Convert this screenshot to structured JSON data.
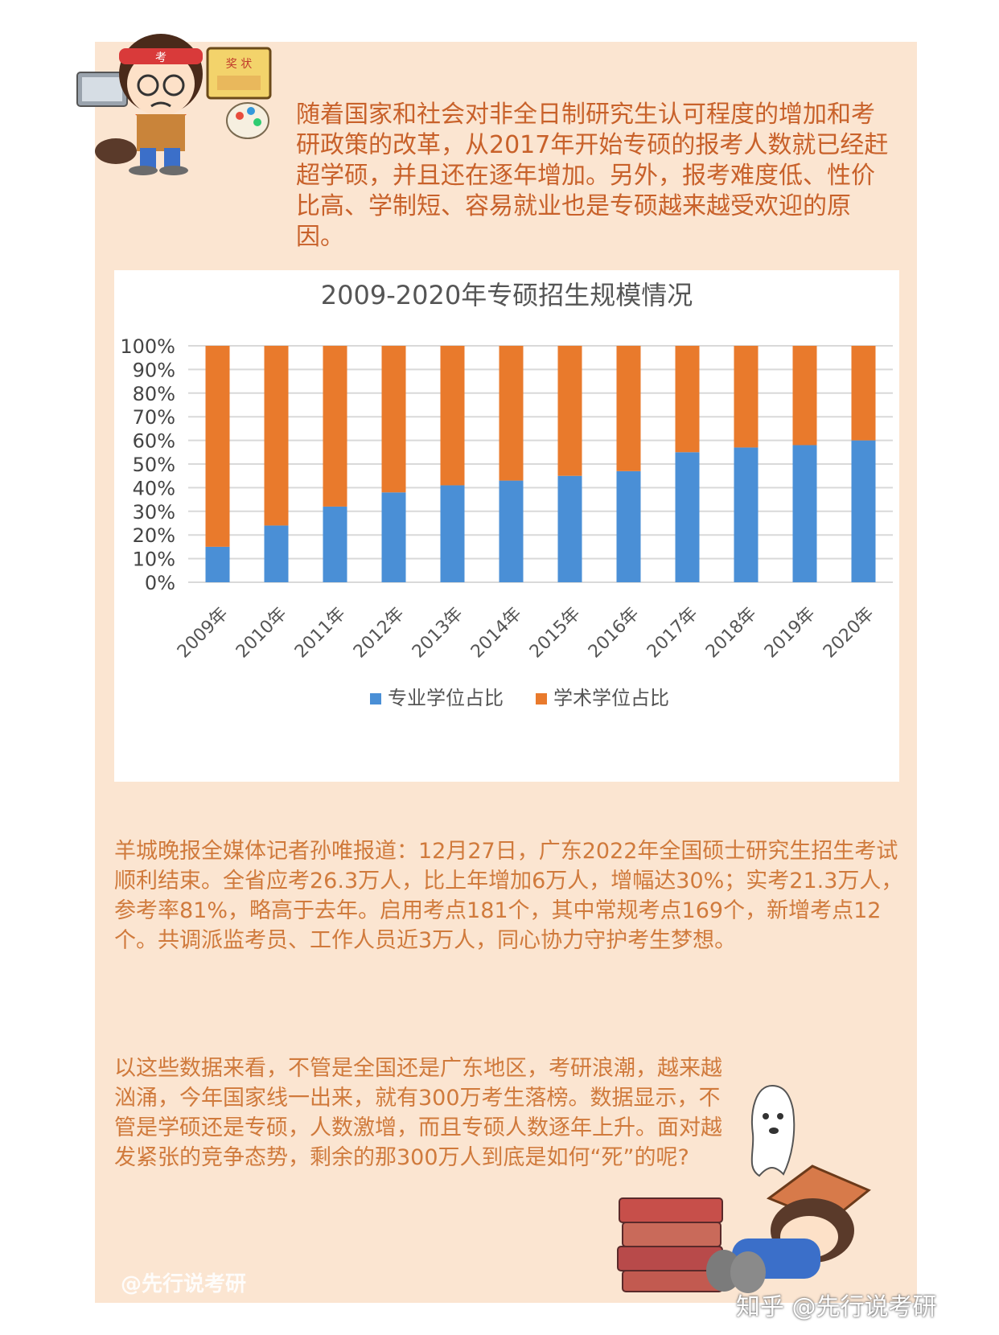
{
  "intro_text": "随着国家和社会对非全日制研究生认可程度的增加和考研政策的改革，从2017年开始专硕的报考人数就已经赶超学硕，并且还在逐年增加。另外，报考难度低、性价比高、学制短、容易就业也是专硕越来越受欢迎的原因。",
  "chart_data": {
    "type": "bar",
    "stacked": true,
    "title": "2009-2020年专硕招生规模情况",
    "xlabel": "",
    "ylabel": "",
    "ylim": [
      0,
      100
    ],
    "y_ticks": [
      "0%",
      "10%",
      "20%",
      "30%",
      "40%",
      "50%",
      "60%",
      "70%",
      "80%",
      "90%",
      "100%"
    ],
    "categories": [
      "2009年",
      "2010年",
      "2011年",
      "2012年",
      "2013年",
      "2014年",
      "2015年",
      "2016年",
      "2017年",
      "2018年",
      "2019年",
      "2020年"
    ],
    "series": [
      {
        "name": "专业学位占比",
        "color": "#4a8fd6",
        "values": [
          15,
          24,
          32,
          38,
          41,
          43,
          45,
          47,
          55,
          57,
          58,
          60
        ]
      },
      {
        "name": "学术学位占比",
        "color": "#e97a2c",
        "values": [
          85,
          76,
          68,
          62,
          59,
          57,
          55,
          53,
          45,
          43,
          42,
          40
        ]
      }
    ],
    "grid": true,
    "legend_position": "bottom"
  },
  "paragraph1": "羊城晚报全媒体记者孙唯报道：12月27日，广东2022年全国硕士研究生招生考试顺利结束。全省应考26.3万人，比上年增加6万人，增幅达30%；实考21.3万人，参考率81%，略高于去年。启用考点181个，其中常规考点169个，新增考点12个。共调派监考员、工作人员近3万人，同心协力守护考生梦想。",
  "paragraph2": "以这些数据来看，不管是全国还是广东地区，考研浪潮，越来越汹涌，今年国家线一出来，就有300万考生落榜。数据显示，不管是学硕还是专硕，人数激增，而且专硕人数逐年上升。面对越发紧张的竞争态势，剩余的那300万人到底是如何“死”的呢?",
  "watermark_left": "@先行说考研",
  "watermark_right": "知乎 @先行说考研",
  "headband_text": "考",
  "sign_text": "奖 状"
}
